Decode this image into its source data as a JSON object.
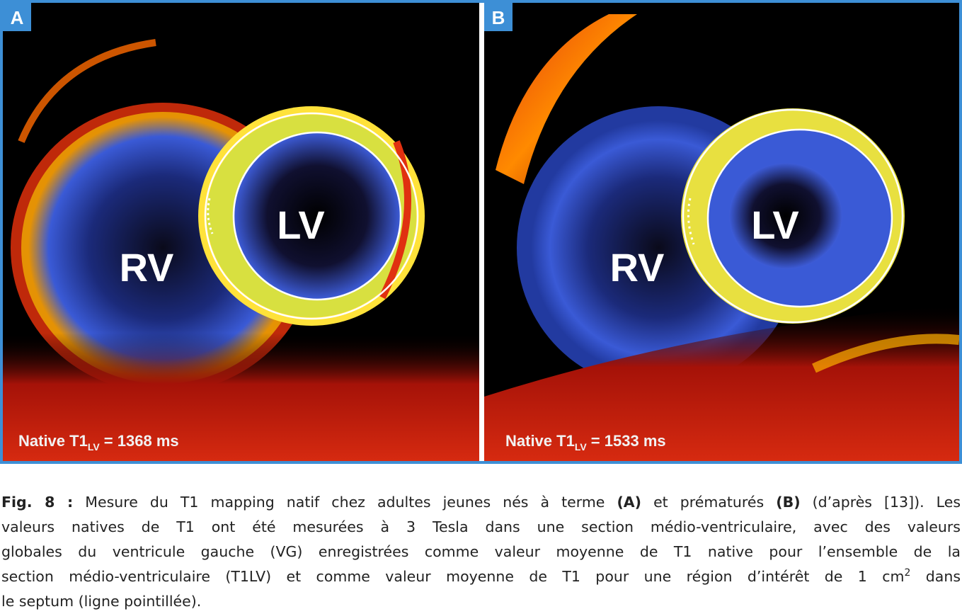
{
  "figure": {
    "panels": [
      {
        "letter": "A",
        "rv": "RV",
        "lv": "LV",
        "measure": {
          "prefix": "Native T1",
          "sub": "LV",
          "suffix": " = 1368 ms"
        }
      },
      {
        "letter": "B",
        "rv": "RV",
        "lv": "LV",
        "measure": {
          "prefix": "Native T1",
          "sub": "LV",
          "suffix": " = 1533 ms"
        }
      }
    ],
    "caption": {
      "lines": [
        [
          "Fig. 8 :",
          " Mesure du T1 mapping natif chez adultes jeunes nés à terme ",
          "(A)",
          " et prématurés ",
          "(B)",
          " (d’après [13]). Les"
        ],
        [
          "valeurs natives de T1 ont été mesurées à 3 Tesla dans une section médio-ventriculaire, avec des valeurs"
        ],
        [
          "globales du ventricule gauche (VG) enregistrées comme valeur moyenne de T1 native pour l’ensemble de la"
        ],
        [
          "section médio-ventriculaire (T1LV) et comme valeur moyenne de T1 pour une région d’intérêt de 1 cm",
          "2",
          " dans"
        ],
        [
          "le septum (ligne pointillée)."
        ]
      ]
    }
  }
}
